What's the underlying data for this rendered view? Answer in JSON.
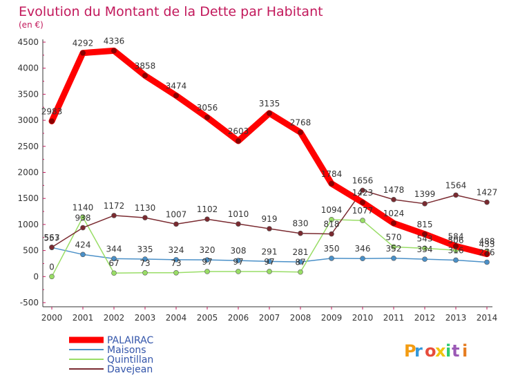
{
  "chart_data": {
    "type": "line",
    "title": "Evolution du Montant de la Dette par Habitant",
    "subtitle": "(en €)",
    "x": [
      "2000",
      "2001",
      "2002",
      "2003",
      "2004",
      "2005",
      "2006",
      "2007",
      "2008",
      "2009",
      "2010",
      "2011",
      "2012",
      "2013",
      "2014"
    ],
    "ylim": [
      -500,
      4500
    ],
    "yticks": [
      "-500",
      "0",
      "500",
      "1000",
      "1500",
      "2000",
      "2500",
      "3000",
      "3500",
      "4000",
      "4500"
    ],
    "grid": false,
    "legend_position": "bottom-left",
    "series": [
      {
        "name": "PALAIRAC",
        "color": "#ff0000",
        "values": [
          2983,
          4292,
          4336,
          3858,
          3474,
          3056,
          2603,
          3135,
          2768,
          1784,
          1423,
          1024,
          815,
          584,
          433
        ],
        "labels": [
          "2983",
          "4292",
          "4336",
          "3858",
          "3474",
          "3056",
          "2603",
          "3135",
          "2768",
          "1784",
          "1423",
          "1024",
          "815",
          "584",
          "433"
        ]
      },
      {
        "name": "Maisons",
        "color": "#4a90c8",
        "values": [
          557,
          424,
          344,
          335,
          324,
          320,
          308,
          291,
          281,
          350,
          346,
          352,
          334,
          316,
          276
        ],
        "labels": [
          "557",
          "424",
          "344",
          "335",
          "324",
          "320",
          "308",
          "291",
          "281",
          "350",
          "346",
          "352",
          "334",
          "316",
          "276"
        ]
      },
      {
        "name": "Quintillan",
        "color": "#99dd66",
        "values": [
          0,
          1140,
          67,
          73,
          73,
          97,
          97,
          97,
          87,
          1094,
          1077,
          570,
          543,
          506,
          488
        ],
        "labels": [
          "0",
          "1140",
          "67",
          "73",
          "73",
          "97",
          "97",
          "97",
          "87",
          "1094",
          "1077",
          "570",
          "543",
          "506",
          "488"
        ]
      },
      {
        "name": "Davejean",
        "color": "#7a2a30",
        "values": [
          563,
          938,
          1172,
          1130,
          1007,
          1102,
          1010,
          919,
          830,
          818,
          1656,
          1478,
          1399,
          1564,
          1427
        ],
        "labels": [
          "563",
          "938",
          "1172",
          "1130",
          "1007",
          "1102",
          "1010",
          "919",
          "830",
          "818",
          "1656",
          "1478",
          "1399",
          "1564",
          "1427"
        ]
      }
    ]
  },
  "legend": {
    "items": [
      {
        "label": "PALAIRAC"
      },
      {
        "label": "Maisons"
      },
      {
        "label": "Quintillan"
      },
      {
        "label": "Davejean"
      }
    ]
  },
  "logo": {
    "text": "Proxiti",
    "colors": [
      "#f39c12",
      "#3498db",
      "#e74c3c",
      "#f1c40f",
      "#2ecc71",
      "#9b59b6",
      "#e67e22"
    ]
  }
}
